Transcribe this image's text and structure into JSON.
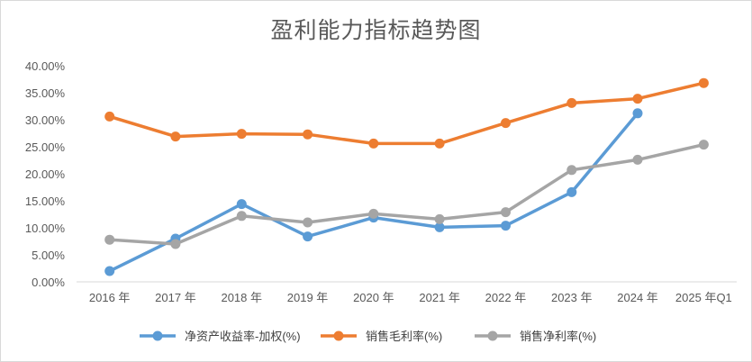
{
  "chart_data": {
    "type": "line",
    "title": "盈利能力指标趋势图",
    "categories": [
      "2016 年",
      "2017 年",
      "2018 年",
      "2019 年",
      "2020 年",
      "2021 年",
      "2022 年",
      "2023 年",
      "2024 年",
      "2025 年Q1"
    ],
    "ylim": [
      0,
      40
    ],
    "yticks": [
      "0.00%",
      "5.00%",
      "10.00%",
      "15.00%",
      "20.00%",
      "25.00%",
      "30.00%",
      "35.00%",
      "40.00%"
    ],
    "grid": false,
    "legend_position": "bottom",
    "series": [
      {
        "name": "净资产收益率-加权(%)",
        "color": "#5B9BD5",
        "values": [
          2.0,
          8.0,
          14.4,
          8.4,
          11.9,
          10.1,
          10.4,
          16.6,
          31.2,
          null
        ]
      },
      {
        "name": "销售毛利率(%)",
        "color": "#ED7D31",
        "values": [
          30.6,
          26.9,
          27.4,
          27.3,
          25.6,
          25.6,
          29.4,
          33.1,
          33.9,
          36.8
        ]
      },
      {
        "name": "销售净利率(%)",
        "color": "#A5A5A5",
        "values": [
          7.8,
          7.0,
          12.2,
          11.0,
          12.6,
          11.6,
          12.9,
          20.7,
          22.6,
          25.4
        ]
      }
    ]
  }
}
